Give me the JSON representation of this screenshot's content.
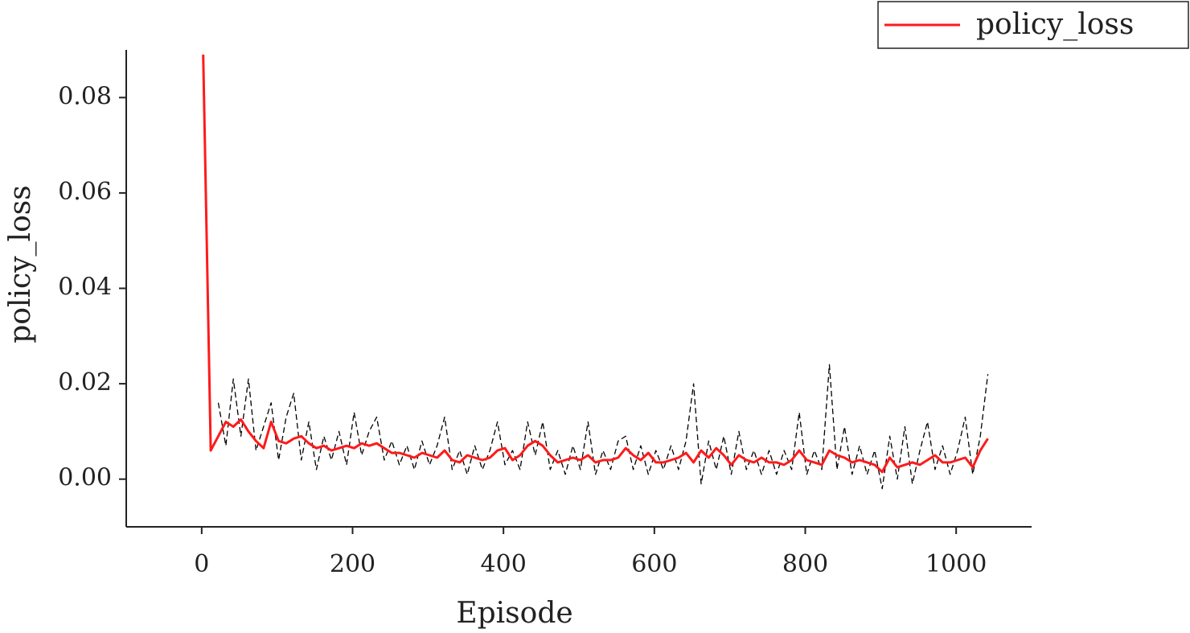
{
  "chart_data": {
    "type": "line",
    "x_label": "Episode",
    "y_label": "policy_loss",
    "x": [
      2,
      12,
      22,
      32,
      42,
      52,
      62,
      72,
      82,
      92,
      102,
      112,
      122,
      132,
      142,
      152,
      162,
      172,
      182,
      192,
      202,
      212,
      222,
      232,
      242,
      252,
      262,
      272,
      282,
      292,
      302,
      312,
      322,
      332,
      342,
      352,
      362,
      372,
      382,
      392,
      402,
      412,
      422,
      432,
      442,
      452,
      462,
      472,
      482,
      492,
      502,
      512,
      522,
      532,
      542,
      552,
      562,
      572,
      582,
      592,
      602,
      612,
      622,
      632,
      642,
      652,
      662,
      672,
      682,
      692,
      702,
      712,
      722,
      732,
      742,
      752,
      762,
      772,
      782,
      792,
      802,
      812,
      822,
      832,
      842,
      852,
      862,
      872,
      882,
      892,
      902,
      912,
      922,
      932,
      942,
      952,
      962,
      972,
      982,
      992,
      1002,
      1012,
      1022,
      1032,
      1042
    ],
    "series": [
      {
        "color": "#000000",
        "dashed": true,
        "values": [
          null,
          null,
          0.016,
          0.007,
          0.021,
          0.009,
          0.021,
          0.006,
          0.011,
          0.016,
          0.004,
          0.013,
          0.018,
          0.004,
          0.012,
          0.002,
          0.009,
          0.004,
          0.01,
          0.003,
          0.014,
          0.005,
          0.01,
          0.013,
          0.004,
          0.008,
          0.003,
          0.007,
          0.002,
          0.008,
          0.003,
          0.007,
          0.013,
          0.002,
          0.006,
          0.001,
          0.007,
          0.002,
          0.006,
          0.012,
          0.003,
          0.006,
          0.002,
          0.012,
          0.005,
          0.012,
          0.002,
          0.006,
          0.001,
          0.007,
          0.002,
          0.012,
          0.001,
          0.006,
          0.002,
          0.008,
          0.009,
          0.002,
          0.007,
          0.001,
          0.006,
          0.002,
          0.007,
          0.002,
          0.008,
          0.02,
          -0.001,
          0.008,
          0.002,
          0.009,
          0.001,
          0.01,
          0.002,
          0.006,
          0.001,
          0.006,
          0.001,
          0.006,
          0.002,
          0.014,
          0.001,
          0.006,
          0.002,
          0.024,
          0.002,
          0.011,
          0.001,
          0.007,
          0.001,
          0.006,
          -0.002,
          0.009,
          0.0,
          0.011,
          -0.001,
          0.006,
          0.012,
          0.002,
          0.007,
          0.001,
          0.006,
          0.013,
          0.001,
          0.009,
          0.022
        ]
      },
      {
        "name": "policy_loss",
        "color": "#ff1a1a",
        "dashed": false,
        "values": [
          0.089,
          0.006,
          0.009,
          0.012,
          0.011,
          0.0125,
          0.01,
          0.008,
          0.0065,
          0.012,
          0.008,
          0.0075,
          0.0085,
          0.009,
          0.0075,
          0.0065,
          0.007,
          0.006,
          0.0065,
          0.007,
          0.0065,
          0.0075,
          0.007,
          0.0075,
          0.0065,
          0.0055,
          0.0055,
          0.005,
          0.0045,
          0.0055,
          0.005,
          0.0045,
          0.006,
          0.004,
          0.0035,
          0.005,
          0.0045,
          0.004,
          0.0045,
          0.006,
          0.0065,
          0.004,
          0.005,
          0.007,
          0.008,
          0.007,
          0.005,
          0.0035,
          0.004,
          0.0045,
          0.004,
          0.005,
          0.0035,
          0.004,
          0.004,
          0.0045,
          0.0065,
          0.005,
          0.004,
          0.0055,
          0.0035,
          0.0035,
          0.004,
          0.0045,
          0.0055,
          0.0035,
          0.006,
          0.0045,
          0.0065,
          0.005,
          0.003,
          0.005,
          0.004,
          0.0035,
          0.0045,
          0.0035,
          0.0035,
          0.003,
          0.004,
          0.006,
          0.004,
          0.0035,
          0.003,
          0.006,
          0.005,
          0.0045,
          0.0035,
          0.004,
          0.0035,
          0.003,
          0.0015,
          0.0045,
          0.0025,
          0.003,
          0.0035,
          0.003,
          0.004,
          0.005,
          0.0035,
          0.0035,
          0.004,
          0.0045,
          0.0025,
          0.006,
          0.0085
        ]
      }
    ],
    "xlim": [
      -100,
      1100
    ],
    "xticks": [
      0,
      200,
      400,
      600,
      800,
      1000
    ],
    "ylim": [
      -0.01,
      0.09
    ],
    "yticks": [
      {
        "value": 0,
        "label": "0.00"
      },
      0.02,
      0.04,
      0.06,
      0.08
    ],
    "grid": false,
    "legend": "upper right"
  }
}
